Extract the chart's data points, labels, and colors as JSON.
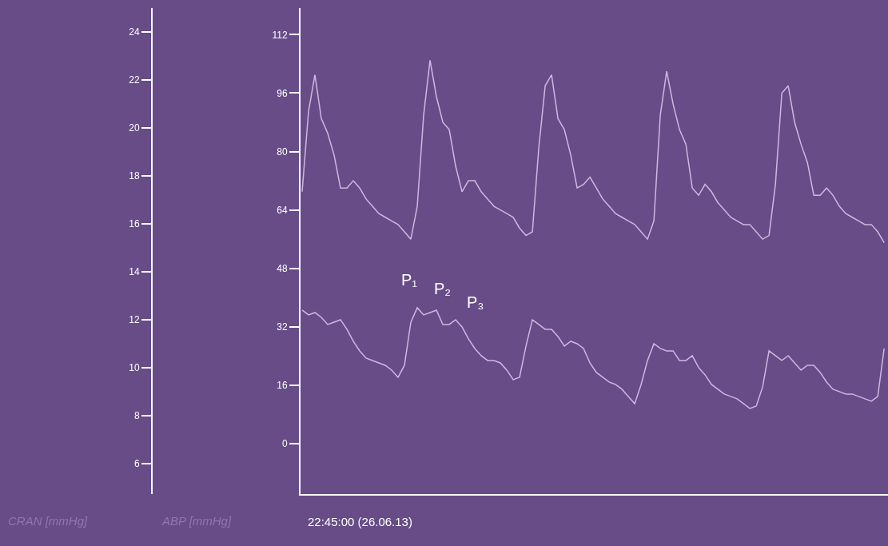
{
  "chart_data": {
    "type": "line",
    "xlabel": "22:45:00 (26.06.13)",
    "categories": [
      null,
      null,
      null,
      null,
      null,
      null,
      null,
      null,
      null,
      null,
      null,
      null,
      null,
      null,
      null,
      null,
      null,
      null,
      null,
      null,
      null,
      null,
      null,
      null,
      null,
      null,
      null,
      null,
      null,
      null,
      null,
      null,
      null,
      null,
      null,
      null,
      null,
      null,
      null,
      null,
      null,
      null,
      null,
      null,
      null,
      null,
      null,
      null,
      null,
      null,
      null,
      null,
      null,
      null,
      null,
      null,
      null,
      null,
      null,
      null,
      null,
      null,
      null,
      null,
      null,
      null,
      null,
      null,
      null,
      null,
      null,
      null,
      null,
      null,
      null,
      null,
      null,
      null,
      null,
      null,
      null,
      null,
      null,
      null,
      null,
      null,
      null,
      null,
      null,
      null,
      null,
      null
    ],
    "series": [
      {
        "color": "#cdb9e0",
        "values": [
          69,
          91,
          101,
          89,
          85,
          79,
          70,
          70,
          72,
          70,
          67,
          65,
          63,
          62,
          61,
          60,
          58,
          56,
          65,
          90,
          105,
          95,
          88,
          86,
          76,
          69,
          72,
          72,
          69,
          67,
          65,
          64,
          63,
          62,
          59,
          57,
          58,
          81,
          98,
          101,
          89,
          86,
          79,
          70,
          71,
          73,
          70,
          67,
          65,
          63,
          62,
          61,
          60,
          58,
          56,
          61,
          90,
          102,
          93,
          86,
          82,
          70,
          68,
          71,
          69,
          66,
          64,
          62,
          61,
          60,
          60,
          58,
          56,
          57,
          71,
          96,
          98,
          88,
          82,
          77,
          68,
          68,
          70,
          68,
          65,
          63,
          62,
          61,
          60,
          60,
          58,
          55
        ]
      },
      {
        "color": "#cdb9e0",
        "axis": "y2",
        "values": [
          12.4,
          12.2,
          12.3,
          12.1,
          11.8,
          11.9,
          12.0,
          11.6,
          11.1,
          10.7,
          10.4,
          10.3,
          10.2,
          10.1,
          9.9,
          9.6,
          10.1,
          11.9,
          12.5,
          12.2,
          12.3,
          12.4,
          11.8,
          11.8,
          12.0,
          11.7,
          11.2,
          10.8,
          10.5,
          10.3,
          10.3,
          10.2,
          9.9,
          9.5,
          9.6,
          10.9,
          12.0,
          11.8,
          11.6,
          11.6,
          11.3,
          10.9,
          11.1,
          11.0,
          10.8,
          10.2,
          9.8,
          9.6,
          9.4,
          9.3,
          9.1,
          8.8,
          8.5,
          9.3,
          10.3,
          11.0,
          10.8,
          10.7,
          10.7,
          10.3,
          10.3,
          10.5,
          10.0,
          9.7,
          9.3,
          9.1,
          8.9,
          8.8,
          8.7,
          8.5,
          8.3,
          8.4,
          9.2,
          10.7,
          10.5,
          10.3,
          10.5,
          10.2,
          9.9,
          10.1,
          10.1,
          9.8,
          9.4,
          9.1,
          9.0,
          8.9,
          8.9,
          8.8,
          8.7,
          8.6,
          8.8,
          10.8
        ]
      }
    ],
    "ylim": [
      -13.8,
      119.3
    ],
    "yticks": [
      0,
      16,
      32,
      48,
      64,
      80,
      96,
      112
    ],
    "y2lim": [
      4.73,
      25
    ],
    "y2ticks": [
      6,
      8,
      10,
      12,
      14,
      16,
      18,
      20,
      22,
      24
    ],
    "annotations": [
      "P₁",
      "P₂",
      "P₃",
      "CRAN [mmHg]",
      "ABP [mmHg]"
    ],
    "grid": false,
    "marker": "none",
    "line_style": "solid"
  }
}
